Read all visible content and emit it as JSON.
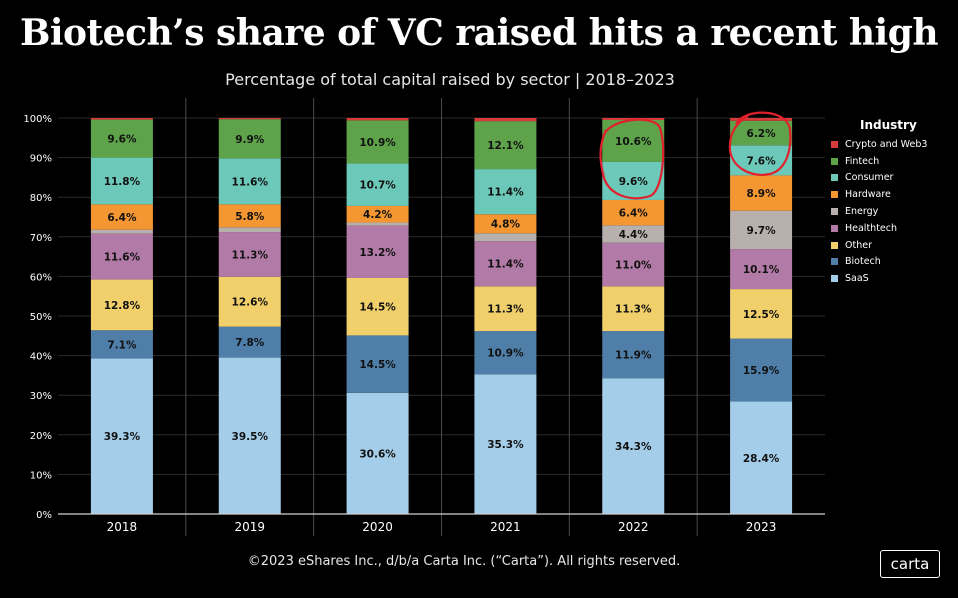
{
  "header": {
    "title": "Biotech’s share of VC raised hits a recent high",
    "subtitle": "Percentage of total capital raised by sector | 2018–2023"
  },
  "footer": {
    "copyright": "©2023 eShares Inc., d/b/a Carta Inc. (“Carta”). All rights reserved.",
    "logo_text": "carta"
  },
  "annotation_color": "#e0202c",
  "chart_data": {
    "type": "bar",
    "stacked": true,
    "categories": [
      "2018",
      "2019",
      "2020",
      "2021",
      "2022",
      "2023"
    ],
    "ylim": [
      0,
      100
    ],
    "yticks": [
      "0%",
      "10%",
      "20%",
      "30%",
      "40%",
      "50%",
      "60%",
      "70%",
      "80%",
      "90%",
      "100%"
    ],
    "legend": {
      "title": "Industry",
      "position": "right"
    },
    "series": [
      {
        "name": "SaaS",
        "color": "#a3cde9",
        "values": [
          39.3,
          39.5,
          30.6,
          35.3,
          34.3,
          28.4
        ],
        "labels": [
          "39.3%",
          "39.5%",
          "30.6%",
          "35.3%",
          "34.3%",
          "28.4%"
        ]
      },
      {
        "name": "Biotech",
        "color": "#4f7fa8",
        "values": [
          7.1,
          7.8,
          14.5,
          10.9,
          11.9,
          15.9
        ],
        "labels": [
          "7.1%",
          "7.8%",
          "14.5%",
          "10.9%",
          "11.9%",
          "15.9%"
        ]
      },
      {
        "name": "Other",
        "color": "#f1d06c",
        "values": [
          12.8,
          12.6,
          14.5,
          11.3,
          11.3,
          12.5
        ],
        "labels": [
          "12.8%",
          "12.6%",
          "14.5%",
          "11.3%",
          "11.3%",
          "12.5%"
        ]
      },
      {
        "name": "Healthtech",
        "color": "#b27aa6",
        "values": [
          11.6,
          11.3,
          13.2,
          11.4,
          11.0,
          10.1
        ],
        "labels": [
          "11.6%",
          "11.3%",
          "13.2%",
          "11.4%",
          "11.0%",
          "10.1%"
        ]
      },
      {
        "name": "Energy",
        "color": "#b8b0ad",
        "values": [
          1.0,
          1.2,
          0.8,
          2.0,
          4.4,
          9.7
        ],
        "labels": [
          "",
          "",
          "",
          "",
          "4.4%",
          "9.7%"
        ]
      },
      {
        "name": "Hardware",
        "color": "#f49632",
        "values": [
          6.4,
          5.8,
          4.2,
          4.8,
          6.4,
          8.9
        ],
        "labels": [
          "6.4%",
          "5.8%",
          "4.2%",
          "4.8%",
          "6.4%",
          "8.9%"
        ]
      },
      {
        "name": "Consumer",
        "color": "#6cc8b9",
        "values": [
          11.8,
          11.6,
          10.7,
          11.4,
          9.6,
          7.6
        ],
        "labels": [
          "11.8%",
          "11.6%",
          "10.7%",
          "11.4%",
          "9.6%",
          "7.6%"
        ]
      },
      {
        "name": "Fintech",
        "color": "#5ea34a",
        "values": [
          9.6,
          9.9,
          10.9,
          12.1,
          10.6,
          6.2
        ],
        "labels": [
          "9.6%",
          "9.9%",
          "10.9%",
          "12.1%",
          "10.6%",
          "6.2%"
        ]
      },
      {
        "name": "Crypto and Web3",
        "color": "#d93b3b",
        "values": [
          0.4,
          0.3,
          0.6,
          0.8,
          0.5,
          0.7
        ],
        "labels": [
          "",
          "",
          "",
          "",
          "",
          ""
        ]
      }
    ],
    "legend_order": [
      "Crypto and Web3",
      "Fintech",
      "Consumer",
      "Hardware",
      "Energy",
      "Healthtech",
      "Other",
      "Biotech",
      "SaaS"
    ]
  }
}
